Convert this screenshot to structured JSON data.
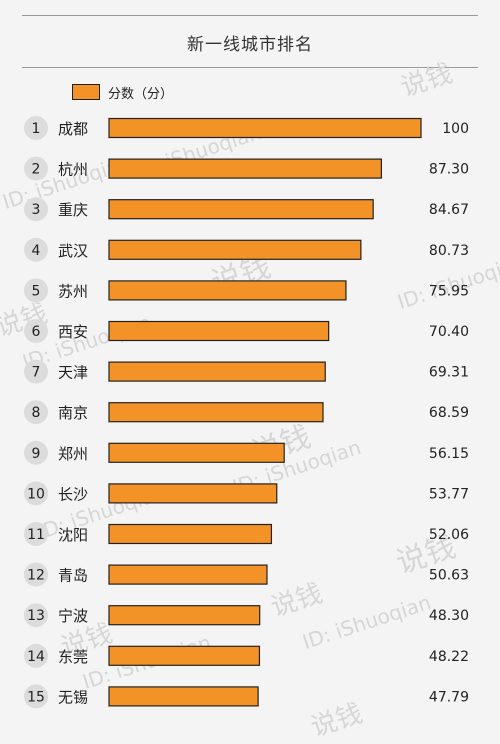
{
  "chart_data": {
    "type": "bar",
    "orientation": "horizontal",
    "title": "新一线城市排名",
    "legend": "分数（分）",
    "ranks": [
      "1",
      "2",
      "3",
      "4",
      "5",
      "6",
      "7",
      "8",
      "9",
      "10",
      "11",
      "12",
      "13",
      "14",
      "15"
    ],
    "categories": [
      "成都",
      "杭州",
      "重庆",
      "武汉",
      "苏州",
      "西安",
      "天津",
      "南京",
      "郑州",
      "长沙",
      "沈阳",
      "青岛",
      "宁波",
      "东莞",
      "无锡"
    ],
    "values": [
      100,
      87.3,
      84.67,
      80.73,
      75.95,
      70.4,
      69.31,
      68.59,
      56.15,
      53.77,
      52.06,
      50.63,
      48.3,
      48.22,
      47.79
    ],
    "value_labels": [
      "100",
      "87.30",
      "84.67",
      "80.73",
      "75.95",
      "70.40",
      "69.31",
      "68.59",
      "56.15",
      "53.77",
      "52.06",
      "50.63",
      "48.30",
      "48.22",
      "47.79"
    ],
    "colors": {
      "bar": "#f39226",
      "bar_border": "#222222",
      "rank_badge": "#dcdcdc"
    }
  },
  "watermarks": [
    "ID: iShuoqian",
    "说钱"
  ]
}
